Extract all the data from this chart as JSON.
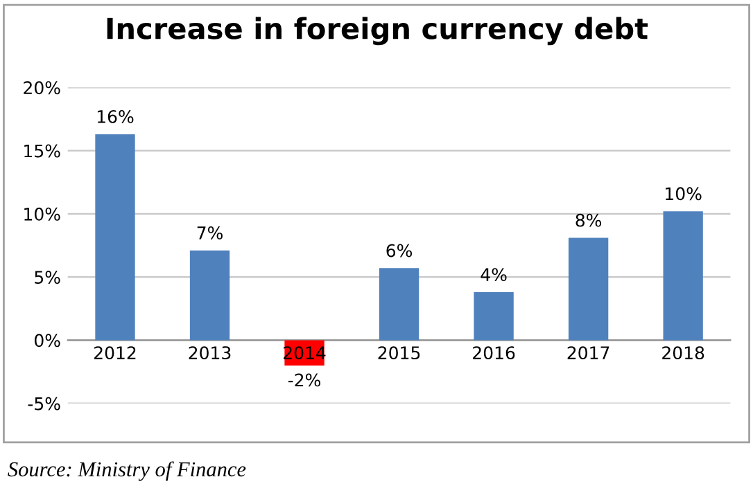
{
  "chart_data": {
    "type": "bar",
    "title": "Increase in foreign currency debt",
    "categories": [
      "2012",
      "2013",
      "2014",
      "2015",
      "2016",
      "2017",
      "2018"
    ],
    "values": [
      16.3,
      7.1,
      -2.0,
      5.7,
      3.8,
      8.1,
      10.2
    ],
    "colors": [
      "#4f81bd",
      "#4f81bd",
      "#ff0000",
      "#4f81bd",
      "#4f81bd",
      "#4f81bd",
      "#4f81bd"
    ],
    "value_labels": [
      "16%",
      "7%",
      "-2%",
      "6%",
      "4%",
      "8%",
      "10%"
    ],
    "ylim": [
      -5,
      20
    ],
    "yticks": [
      {
        "value": -5,
        "label": "-5%"
      },
      {
        "value": 0,
        "label": "0%"
      },
      {
        "value": 5,
        "label": "5%"
      },
      {
        "value": 10,
        "label": "10%"
      },
      {
        "value": 15,
        "label": "15%"
      },
      {
        "value": 20,
        "label": "20%"
      }
    ],
    "grid": "y",
    "annotations": [
      "Source: Ministry of Finance"
    ]
  }
}
